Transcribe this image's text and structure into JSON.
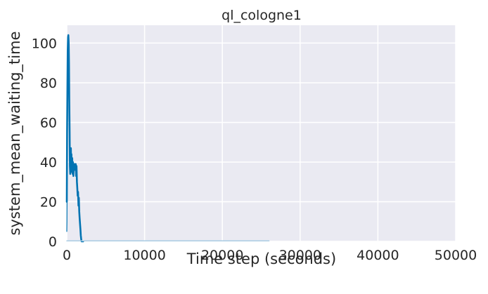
{
  "chart_data": {
    "type": "line",
    "title": "ql_cologne1",
    "xlabel": "Time step (seconds)",
    "ylabel": "system_mean_waiting_time",
    "xlim": [
      0,
      50000
    ],
    "ylim": [
      0,
      109
    ],
    "xticks": [
      0,
      10000,
      20000,
      30000,
      40000,
      50000
    ],
    "yticks": [
      0,
      20,
      40,
      60,
      80,
      100
    ],
    "grid": true,
    "legend": "none",
    "colors": {
      "background": "#EAEAF2",
      "grid": "#FFFFFF",
      "line": "#0173B2",
      "faint_line": "#A9CCE3"
    },
    "series": [
      {
        "x": [
          0,
          40,
          80,
          120,
          160,
          200,
          240,
          280,
          320,
          360,
          400,
          440,
          480,
          520,
          560,
          600,
          650,
          700,
          750,
          800,
          850,
          900,
          950,
          1000,
          1050,
          1100,
          1150,
          1200,
          1250,
          1300,
          1350,
          1400,
          1450,
          1500,
          1550,
          1600,
          1650,
          1700,
          1750,
          1800,
          1850,
          1900,
          1950,
          2000,
          2050,
          2100
        ],
        "y": [
          20,
          55,
          78,
          96,
          103,
          104,
          100,
          90,
          72,
          55,
          38,
          34,
          46,
          47,
          38,
          44,
          35,
          42,
          34,
          40,
          33,
          37,
          38,
          39,
          37,
          36,
          39,
          33,
          38,
          30,
          27,
          23,
          25,
          18,
          22,
          15,
          12,
          9,
          6,
          3,
          1,
          0,
          0,
          0,
          0,
          0
        ]
      },
      {
        "x": [
          0,
          20,
          40,
          60,
          80,
          100,
          120,
          140,
          160,
          180,
          200
        ],
        "y": [
          5,
          10,
          25,
          45,
          60,
          72,
          80,
          85,
          90,
          95,
          100
        ]
      },
      {
        "x": [
          0,
          2000,
          4000,
          8000,
          12000,
          16000,
          20000,
          24000,
          26000
        ],
        "y": [
          0.3,
          0.3,
          0.3,
          0.3,
          0.3,
          0.3,
          0.3,
          0.3,
          0.3
        ]
      }
    ]
  }
}
